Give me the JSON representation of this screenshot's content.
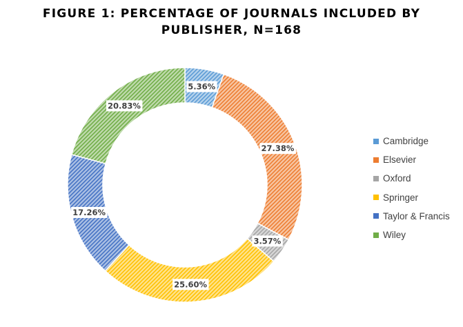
{
  "chart_data": {
    "type": "pie",
    "variant": "donut",
    "title_lines": [
      "FIGURE 1: PERCENTAGE OF JOURNALS INCLUDED BY",
      "PUBLISHER, N=168"
    ],
    "categories": [
      "Cambridge",
      "Elsevier",
      "Oxford",
      "Springer",
      "Taylor & Francis",
      "Wiley"
    ],
    "values": [
      5.36,
      27.38,
      3.57,
      25.6,
      17.26,
      20.83
    ],
    "data_labels": [
      "5.36%",
      "27.38%",
      "3.57%",
      "25.60%",
      "17.26%",
      "20.83%"
    ],
    "colors": [
      "#5B9BD5",
      "#ED7D31",
      "#A5A5A5",
      "#FFC000",
      "#4472C4",
      "#70AD47"
    ],
    "legend_position": "right",
    "fill_pattern": "diagonal-hatch"
  }
}
